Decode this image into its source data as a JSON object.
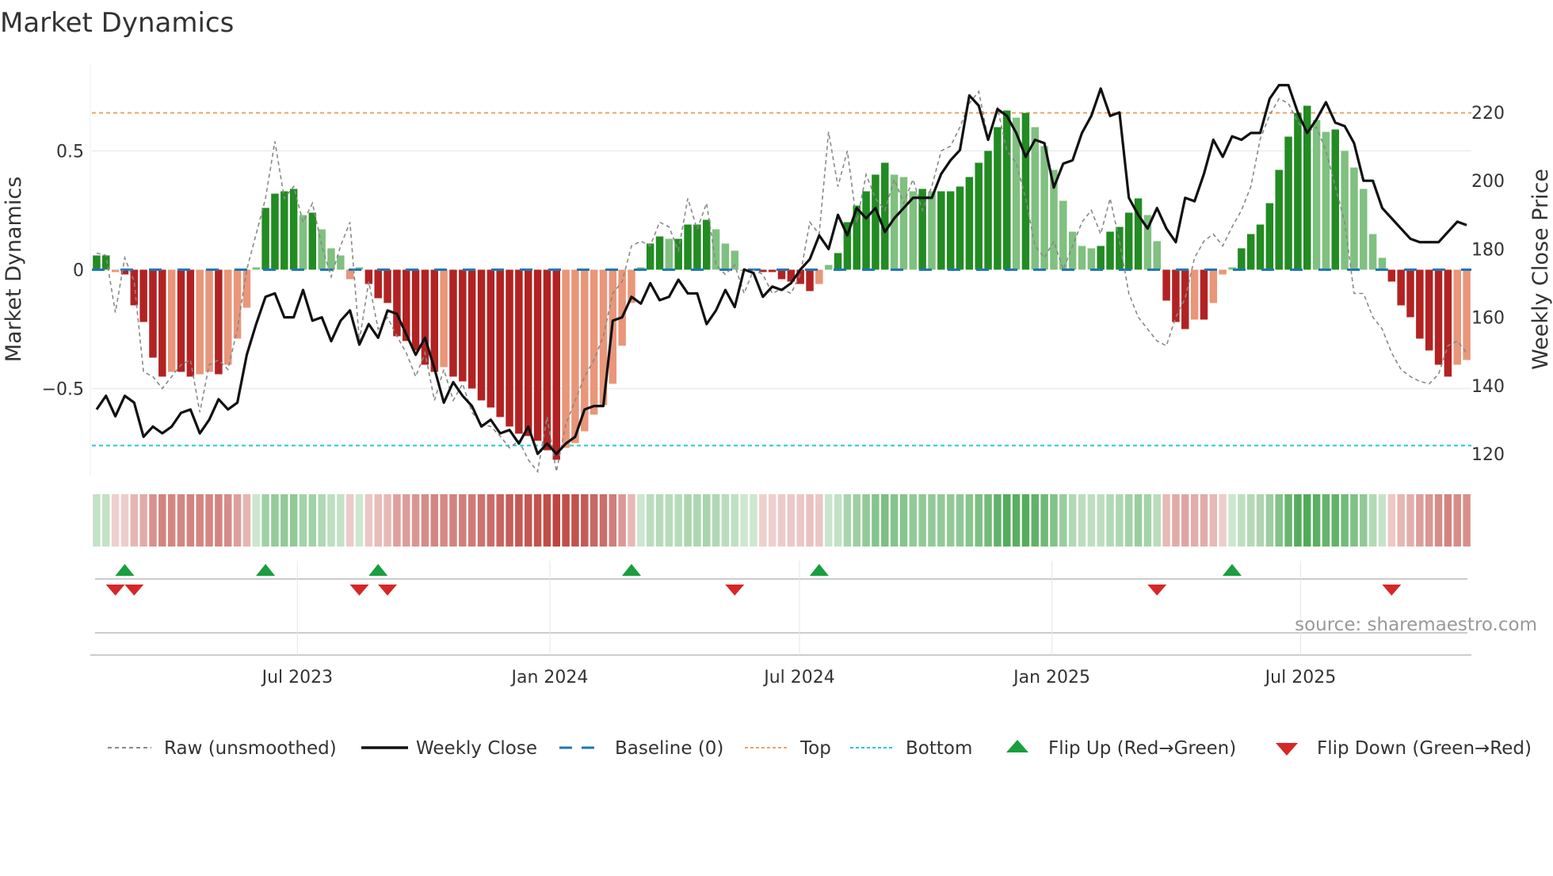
{
  "chart_data": {
    "type": "bar",
    "title": "Market Dynamics",
    "ylabel_left": "Market Dynamics",
    "ylabel_right": "Weekly Close Price",
    "ylim_left": [
      -0.745,
      0.8
    ],
    "ylim_right": [
      113,
      245
    ],
    "left_ticks": [
      {
        "v": 0.5,
        "label": "0.5"
      },
      {
        "v": 0,
        "label": "0"
      },
      {
        "v": -0.5,
        "label": "−0.5"
      }
    ],
    "right_ticks": [
      {
        "v": 220,
        "label": "220"
      },
      {
        "v": 200,
        "label": "200"
      },
      {
        "v": 180,
        "label": "180"
      },
      {
        "v": 160,
        "label": "160"
      },
      {
        "v": 140,
        "label": "140"
      },
      {
        "v": 120,
        "label": "120"
      }
    ],
    "x_ticks": [
      {
        "week": 21.4,
        "label": "Jul 2023"
      },
      {
        "week": 48.3,
        "label": "Jan 2024"
      },
      {
        "week": 74.9,
        "label": "Jul 2024"
      },
      {
        "week": 101.8,
        "label": "Jan 2025"
      },
      {
        "week": 128.3,
        "label": "Jul 2025"
      }
    ],
    "top_level": 0.66,
    "bottom_level": -0.74,
    "baseline": 0,
    "momentum": [
      0.06,
      0.06,
      -0.01,
      -0.02,
      -0.15,
      -0.22,
      -0.37,
      -0.45,
      -0.43,
      -0.43,
      -0.45,
      -0.44,
      -0.43,
      -0.44,
      -0.4,
      -0.29,
      -0.16,
      0.01,
      0.26,
      0.32,
      0.33,
      0.34,
      0.23,
      0.24,
      0.17,
      0.09,
      0.06,
      -0.04,
      0.01,
      -0.06,
      -0.12,
      -0.14,
      -0.28,
      -0.3,
      -0.34,
      -0.4,
      -0.43,
      -0.41,
      -0.45,
      -0.47,
      -0.5,
      -0.55,
      -0.58,
      -0.62,
      -0.66,
      -0.69,
      -0.7,
      -0.72,
      -0.76,
      -0.8,
      -0.75,
      -0.73,
      -0.68,
      -0.61,
      -0.57,
      -0.48,
      -0.32,
      -0.14,
      0.01,
      0.11,
      0.14,
      0.13,
      0.13,
      0.19,
      0.19,
      0.21,
      0.17,
      0.11,
      0.08,
      0.0,
      0.0,
      -0.01,
      -0.01,
      -0.04,
      -0.05,
      -0.06,
      -0.09,
      -0.06,
      0.02,
      0.07,
      0.2,
      0.27,
      0.33,
      0.4,
      0.45,
      0.4,
      0.39,
      0.33,
      0.34,
      0.33,
      0.33,
      0.33,
      0.35,
      0.39,
      0.45,
      0.5,
      0.6,
      0.67,
      0.64,
      0.66,
      0.6,
      0.52,
      0.42,
      0.29,
      0.16,
      0.1,
      0.09,
      0.1,
      0.16,
      0.18,
      0.24,
      0.3,
      0.23,
      0.12,
      -0.13,
      -0.22,
      -0.25,
      -0.21,
      -0.21,
      -0.14,
      -0.02,
      0.01,
      0.09,
      0.15,
      0.19,
      0.28,
      0.42,
      0.56,
      0.66,
      0.69,
      0.63,
      0.58,
      0.59,
      0.5,
      0.43,
      0.34,
      0.15,
      0.05,
      -0.05,
      -0.15,
      -0.2,
      -0.29,
      -0.34,
      -0.4,
      -0.45,
      -0.4,
      -0.38
    ],
    "raw": [
      0.07,
      0.06,
      -0.18,
      0.05,
      -0.05,
      -0.43,
      -0.45,
      -0.5,
      -0.45,
      -0.4,
      -0.38,
      -0.6,
      -0.4,
      -0.38,
      -0.42,
      -0.25,
      0.0,
      0.15,
      0.3,
      0.54,
      0.3,
      0.35,
      0.2,
      0.28,
      0.1,
      -0.03,
      0.1,
      0.2,
      -0.3,
      -0.05,
      -0.25,
      -0.2,
      -0.28,
      -0.35,
      -0.45,
      -0.35,
      -0.55,
      -0.42,
      -0.55,
      -0.48,
      -0.6,
      -0.65,
      -0.66,
      -0.7,
      -0.75,
      -0.72,
      -0.8,
      -0.85,
      -0.62,
      -0.85,
      -0.65,
      -0.55,
      -0.45,
      -0.38,
      -0.28,
      -0.1,
      -0.05,
      0.1,
      0.12,
      0.1,
      0.2,
      0.18,
      0.08,
      0.3,
      0.17,
      0.28,
      0.02,
      -0.02,
      0.02,
      -0.1,
      0.0,
      -0.02,
      -0.1,
      -0.08,
      -0.1,
      -0.02,
      0.2,
      0.15,
      0.58,
      0.35,
      0.5,
      0.2,
      0.4,
      0.3,
      0.25,
      0.38,
      0.28,
      0.38,
      0.25,
      0.35,
      0.5,
      0.52,
      0.6,
      0.7,
      0.75,
      0.55,
      0.68,
      0.5,
      0.45,
      0.3,
      0.1,
      0.05,
      0.12,
      0.0,
      0.1,
      0.2,
      0.25,
      0.15,
      0.3,
      0.12,
      -0.1,
      -0.2,
      -0.25,
      -0.3,
      -0.32,
      -0.2,
      -0.12,
      0.05,
      0.12,
      0.15,
      0.1,
      0.18,
      0.25,
      0.35,
      0.55,
      0.65,
      0.72,
      0.7,
      0.62,
      0.58,
      0.6,
      0.5,
      0.35,
      0.2,
      -0.1,
      -0.1,
      -0.2,
      -0.25,
      -0.35,
      -0.42,
      -0.45,
      -0.47,
      -0.48,
      -0.44,
      -0.32,
      -0.3,
      -0.35
    ],
    "weekly_close": [
      133,
      137,
      131,
      137,
      135,
      125,
      128,
      126,
      128,
      132,
      133,
      126,
      130,
      136,
      133,
      135,
      149,
      158,
      166,
      167,
      160,
      160,
      168,
      159,
      160,
      153,
      159,
      162,
      152,
      158,
      154,
      162,
      161,
      155,
      149,
      154,
      145,
      135,
      141,
      137,
      134,
      128,
      130,
      126,
      127,
      123,
      128,
      120,
      123,
      120,
      123,
      125,
      133,
      134,
      134,
      159,
      160,
      166,
      164,
      170,
      165,
      166,
      171,
      167,
      167,
      158,
      162,
      168,
      163,
      174,
      173,
      166,
      169,
      168,
      170,
      174,
      177,
      184,
      180,
      190,
      184,
      192,
      189,
      192,
      185,
      189,
      192,
      195,
      195,
      195,
      202,
      206,
      209,
      225,
      222,
      212,
      221,
      219,
      214,
      207,
      212,
      211,
      198,
      205,
      206,
      214,
      219,
      227,
      219,
      220,
      195,
      190,
      186,
      192,
      186,
      182,
      195,
      194,
      202,
      212,
      207,
      213,
      212,
      214,
      214,
      224,
      228,
      228,
      220,
      214,
      218,
      223,
      217,
      216,
      211,
      200,
      200,
      192,
      189,
      186,
      183,
      182,
      182,
      182,
      185,
      188,
      187
    ],
    "flip_up_weeks": [
      3,
      18,
      30,
      57,
      77,
      121
    ],
    "flip_down_weeks": [
      2,
      4,
      28,
      31,
      68,
      113,
      138
    ],
    "legend": [
      "Raw (unsmoothed)",
      "Weekly Close",
      "Baseline (0)",
      "Top",
      "Bottom",
      "Flip Up (Red→Green)",
      "Flip Down (Green→Red)"
    ],
    "source": "source: sharemaestro.com",
    "colors": {
      "pos_strong": "#228b22",
      "pos_weak": "#80c080",
      "neg_strong": "#b22222",
      "neg_weak": "#e9967a",
      "top": "#f0a060",
      "bottom": "#26c6da",
      "baseline": "#1f77b4",
      "close": "#111111",
      "raw": "#888888",
      "flip_up": "#1a9e3f",
      "flip_down": "#d62728"
    }
  }
}
